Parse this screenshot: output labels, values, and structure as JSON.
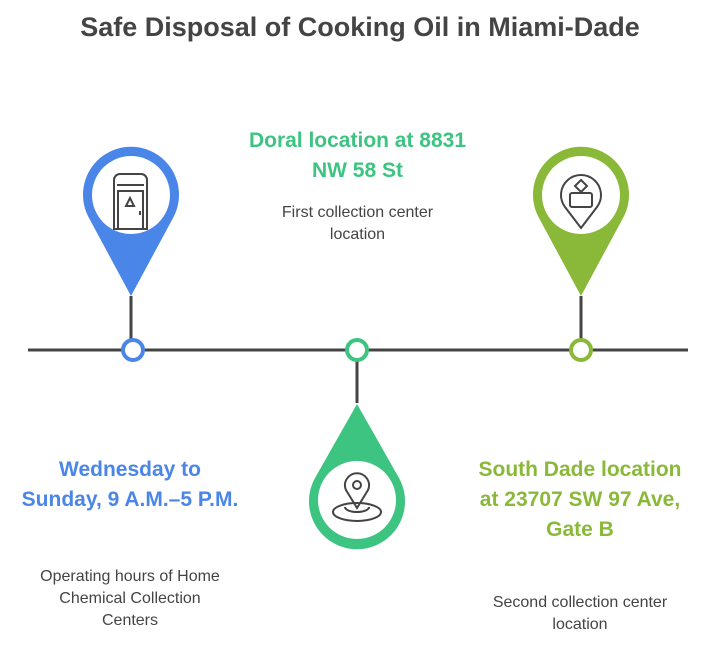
{
  "title": "Safe Disposal of Cooking Oil in Miami-Dade",
  "colors": {
    "blue": "#4a86e8",
    "green": "#3cc480",
    "lime": "#8ab93a",
    "line": "#444444"
  },
  "items": [
    {
      "heading": "Wednesday to Sunday, 9 A.M.–5 P.M.",
      "description": "Operating hours of Home Chemical Collection Centers",
      "icon": "portable-door-cabinet-icon",
      "color": "#4a86e8"
    },
    {
      "heading": "Doral location at 8831 NW 58 St",
      "description": "First collection center location",
      "icon": "location-pin-icon",
      "color": "#3cc480"
    },
    {
      "heading": "South Dade location at 23707 SW 97 Ave, Gate B",
      "description": "Second collection center location",
      "icon": "drop-off-pin-icon",
      "color": "#8ab93a"
    }
  ]
}
